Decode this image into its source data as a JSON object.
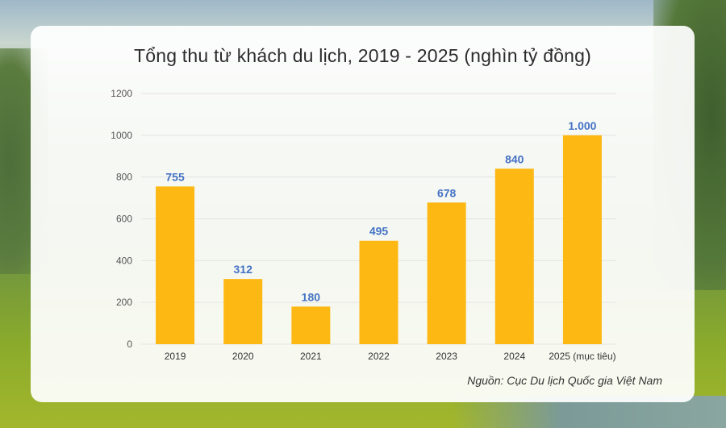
{
  "title": "Tổng thu từ khách du lịch, 2019 - 2025 (nghìn tỷ đồng)",
  "source": "Nguồn: Cục Du lịch Quốc gia Việt Nam",
  "colors": {
    "bar": "#FDB813",
    "value_label": "#4472C4",
    "grid": "#e4e4e4",
    "tick": "#555555"
  },
  "chart_data": {
    "type": "bar",
    "title": "Tổng thu từ khách du lịch, 2019 - 2025 (nghìn tỷ đồng)",
    "xlabel": "",
    "ylabel": "",
    "categories": [
      "2019",
      "2020",
      "2021",
      "2022",
      "2023",
      "2024",
      "2025 (mục tiêu)"
    ],
    "values": [
      755,
      312,
      180,
      495,
      678,
      840,
      1000
    ],
    "data_labels": [
      "755",
      "312",
      "180",
      "495",
      "678",
      "840",
      "1.000"
    ],
    "ylim": [
      0,
      1200
    ],
    "yticks": [
      0,
      200,
      400,
      600,
      800,
      1000,
      1200
    ],
    "grid": true,
    "legend": "none"
  }
}
